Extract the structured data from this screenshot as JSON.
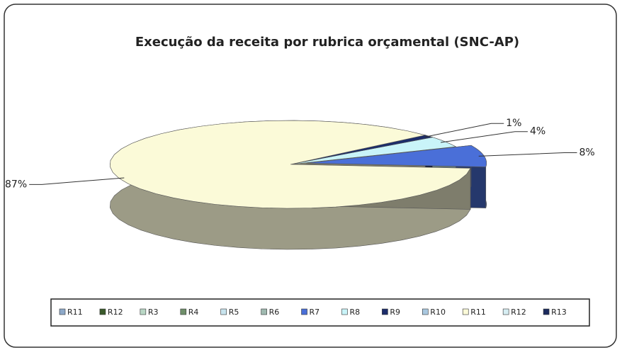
{
  "chart_data": {
    "type": "pie",
    "title": "Execução da receita por rubrica orçamental (SNC-AP)",
    "categories": [
      "R11",
      "R12",
      "R3",
      "R4",
      "R5",
      "R6",
      "R7",
      "R8",
      "R9",
      "R10",
      "R11",
      "R12",
      "R13"
    ],
    "values": [
      0,
      0,
      0,
      0,
      0,
      0,
      8,
      4,
      1,
      0,
      87,
      0,
      0
    ],
    "value_labels": [
      null,
      null,
      null,
      null,
      null,
      null,
      "8%",
      "4%",
      "1%",
      null,
      "87%",
      null,
      null
    ],
    "colors": [
      "#8ea9c9",
      "#3a5a2a",
      "#b9d7c5",
      "#6f8f6a",
      "#c8e4ee",
      "#9fb9b0",
      "#4a6fd8",
      "#c9f4f9",
      "#1c2d6b",
      "#a9c8e0",
      "#fbfad8",
      "#d7eef3",
      "#1b2b5e"
    ],
    "legend": "bottom"
  }
}
